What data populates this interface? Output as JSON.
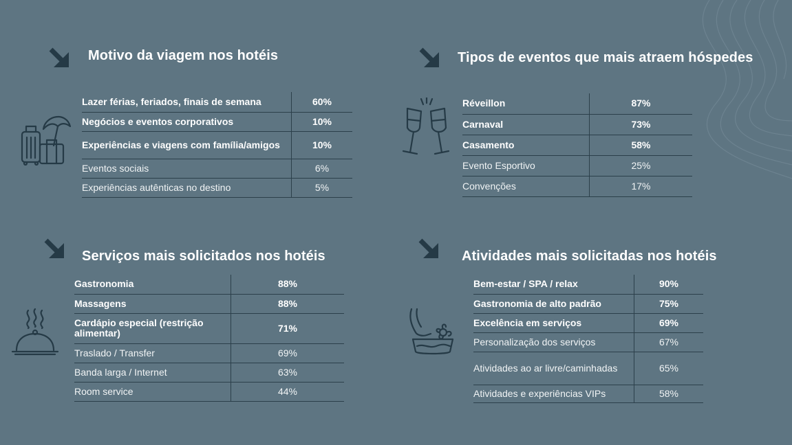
{
  "colors": {
    "background": "#5e7582",
    "dark_accent": "#253a46",
    "line": "#2b3f4a",
    "text": "#ffffff"
  },
  "sections": [
    {
      "id": "motivo",
      "title": "Motivo da viagem nos hotéis",
      "icon": "luggage-umbrella-icon",
      "rows": [
        {
          "label": "Lazer férias, feriados, finais de semana",
          "value": "60%",
          "bold": true
        },
        {
          "label": "Negócios e eventos corporativos",
          "value": "10%",
          "bold": true
        },
        {
          "label": "Experiências e viagens com família/amigos",
          "value": "10%",
          "bold": true
        },
        {
          "label": "Eventos sociais",
          "value": "6%",
          "bold": false
        },
        {
          "label": "Experiências autênticas no destino",
          "value": "5%",
          "bold": false
        }
      ]
    },
    {
      "id": "eventos",
      "title": "Tipos de eventos que mais atraem hóspedes",
      "icon": "champagne-toast-icon",
      "rows": [
        {
          "label": "Réveillon",
          "value": "87%",
          "bold": true
        },
        {
          "label": "Carnaval",
          "value": "73%",
          "bold": true
        },
        {
          "label": "Casamento",
          "value": "58%",
          "bold": true
        },
        {
          "label": "Evento Esportivo",
          "value": "25%",
          "bold": false
        },
        {
          "label": "Convenções",
          "value": "17%",
          "bold": false
        }
      ]
    },
    {
      "id": "servicos",
      "title": "Serviços mais solicitados nos hotéis",
      "icon": "food-cloche-icon",
      "rows": [
        {
          "label": "Gastronomia",
          "value": "88%",
          "bold": true
        },
        {
          "label": "Massagens",
          "value": "88%",
          "bold": true
        },
        {
          "label": "Cardápio especial (restrição alimentar)",
          "value": "71%",
          "bold": true
        },
        {
          "label": "Traslado / Transfer",
          "value": "69%",
          "bold": false
        },
        {
          "label": "Banda larga / Internet",
          "value": "63%",
          "bold": false
        },
        {
          "label": "Room service",
          "value": "44%",
          "bold": false
        }
      ]
    },
    {
      "id": "atividades",
      "title": "Atividades mais solicitadas nos hotéis",
      "icon": "spa-foot-bath-icon",
      "rows": [
        {
          "label": "Bem-estar / SPA / relax",
          "value": "90%",
          "bold": true
        },
        {
          "label": "Gastronomia de alto padrão",
          "value": "75%",
          "bold": true
        },
        {
          "label": "Excelência em serviços",
          "value": "69%",
          "bold": true
        },
        {
          "label": "Personalização dos serviços",
          "value": "67%",
          "bold": false
        },
        {
          "label": "Atividades ao ar livre/caminhadas",
          "value": "65%",
          "bold": false
        },
        {
          "label": "Atividades e experiências VIPs",
          "value": "58%",
          "bold": false
        }
      ]
    }
  ]
}
